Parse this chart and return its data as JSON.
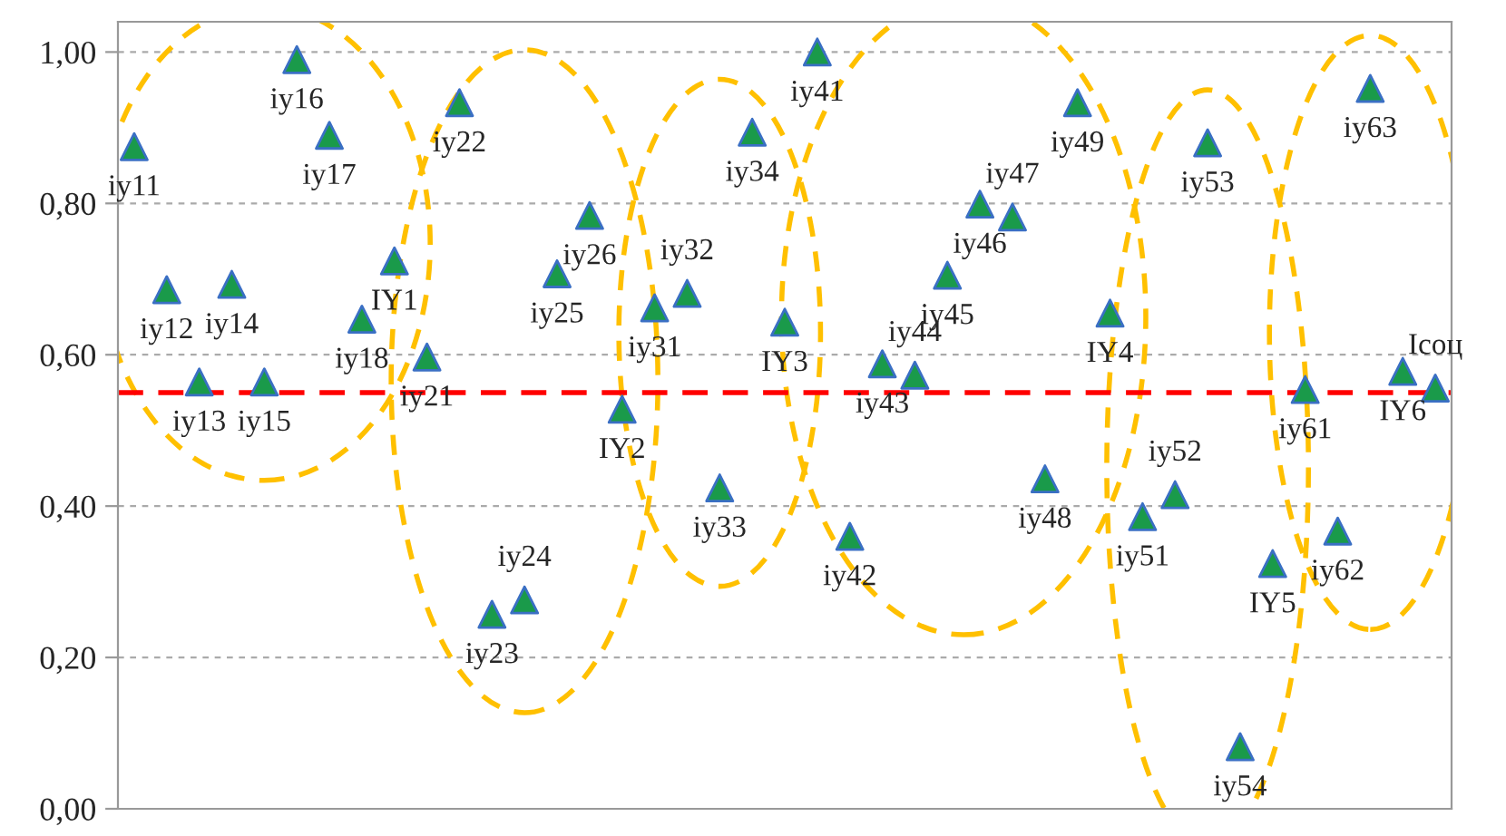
{
  "chart_data": {
    "type": "scatter",
    "categories": [
      null,
      null,
      null,
      null,
      null,
      null,
      null,
      null,
      null,
      null,
      null,
      null,
      null,
      null,
      null,
      null,
      null,
      null,
      null,
      null,
      null,
      null,
      null,
      null,
      null,
      null,
      null,
      null,
      null,
      null,
      null,
      null,
      null,
      null,
      null,
      null,
      null,
      null,
      null,
      null,
      null
    ],
    "series": [
      {
        "color": "#1a9a4a",
        "values": [
          0.875,
          0.686,
          0.564,
          0.693,
          0.564,
          0.99,
          0.89,
          0.647,
          0.724,
          0.597,
          0.933,
          0.257,
          0.276,
          0.707,
          0.784,
          0.528,
          0.662,
          0.681,
          0.424,
          0.894,
          0.643,
          1.0,
          0.36,
          0.588,
          0.573,
          0.705,
          0.799,
          0.782,
          0.436,
          0.933,
          0.655,
          0.386,
          0.415,
          0.88,
          0.082,
          0.324,
          0.554,
          0.367,
          0.952,
          0.578,
          0.556
        ]
      }
    ],
    "annotations": [
      "iy11",
      "iy12",
      "iy13",
      "iy14",
      "iy15",
      "iy16",
      "iy17",
      "iy18",
      "IY1",
      "iy21",
      "iy22",
      "iy23",
      "iy24",
      "iy25",
      "iy26",
      "IY2",
      "iy31",
      "iy32",
      "iy33",
      "iy34",
      "IY3",
      "iy41",
      "iy42",
      "iy43",
      "iy44",
      "iy45",
      "iy46",
      "iy47",
      "iy48",
      "iy49",
      "IY4",
      "iy51",
      "iy52",
      "iy53",
      "iy54",
      "IY5",
      "iy61",
      "iy62",
      "iy63",
      "IY6",
      "Iсоц"
    ],
    "ref_lines": [
      {
        "axis": "y",
        "value": 0.55,
        "color": "#ff0000",
        "line_style": "dashed"
      }
    ],
    "ylim": [
      0,
      1.04
    ],
    "yticks": [
      {
        "value": 0,
        "label": "0,00"
      },
      {
        "value": 0.2,
        "label": "0,20"
      },
      {
        "value": 0.4,
        "label": "0,40"
      },
      {
        "value": 0.6,
        "label": "0,60"
      },
      {
        "value": 0.8,
        "label": "0,80"
      },
      {
        "value": 1.0,
        "label": "1,00"
      }
    ],
    "tick_labels": "y",
    "grid": "y",
    "marker": "triangle",
    "legend": false
  }
}
